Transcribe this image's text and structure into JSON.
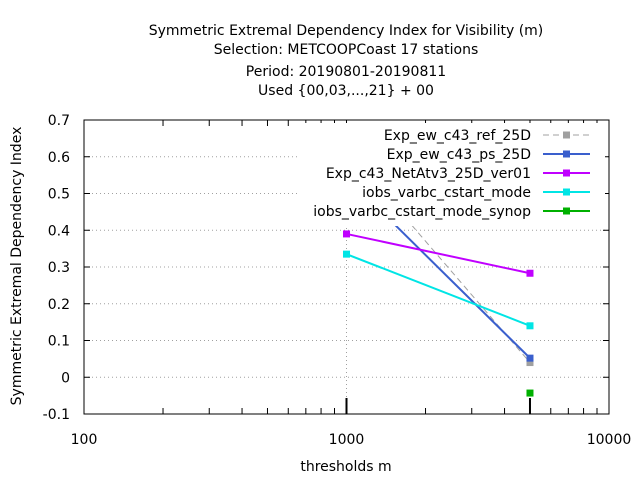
{
  "chart_data": {
    "type": "line",
    "title": [
      "Symmetric Extremal Dependency Index  for Visibility (m)",
      "Selection: METCOOPCoast     17 stations",
      "Period: 20190801-20190811",
      "Used {00,03,...,21} + 00"
    ],
    "xlabel": "thresholds m",
    "ylabel": "Symmetric Extremal Dependency Index",
    "x_scale": "log",
    "xlim": [
      100,
      10000
    ],
    "ylim": [
      -0.1,
      0.7
    ],
    "x_ticks": [
      100,
      1000,
      10000
    ],
    "x_tick_labels": [
      "100",
      "1000",
      "10000"
    ],
    "y_ticks": [
      -0.1,
      0,
      0.1,
      0.2,
      0.3,
      0.4,
      0.5,
      0.6,
      0.7
    ],
    "y_tick_labels": [
      "-0.1",
      "0",
      "0.1",
      "0.2",
      "0.3",
      "0.4",
      "0.5",
      "0.6",
      "0.7"
    ],
    "grid": true,
    "legend_position": "top-right",
    "series": [
      {
        "name": "Exp_ew_c43_ref_25D",
        "color": "#a0a0a0",
        "dashed": true,
        "x": [
          1000,
          5000
        ],
        "y": [
          0.62,
          0.04
        ]
      },
      {
        "name": "Exp_ew_c43_ps_25D",
        "color": "#3a5fcd",
        "dashed": false,
        "x": [
          1000,
          5000
        ],
        "y": [
          0.545,
          0.052
        ]
      },
      {
        "name": "Exp_c43_NetAtv3_25D_ver01",
        "color": "#c000ff",
        "dashed": false,
        "x": [
          1000,
          5000
        ],
        "y": [
          0.39,
          0.283
        ]
      },
      {
        "name": "iobs_varbc_cstart_mode",
        "color": "#00e5e5",
        "dashed": false,
        "x": [
          1000,
          5000
        ],
        "y": [
          0.335,
          0.14
        ]
      },
      {
        "name": "iobs_varbc_cstart_mode_synop",
        "color": "#00b000",
        "dashed": false,
        "x": [
          5000
        ],
        "y": [
          -0.043
        ]
      }
    ]
  }
}
